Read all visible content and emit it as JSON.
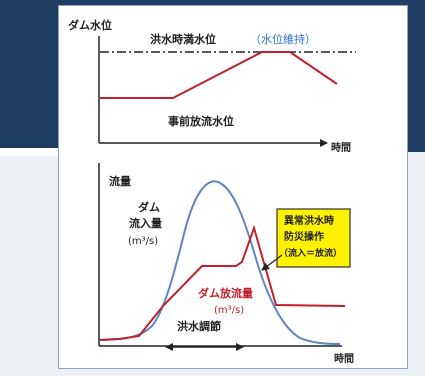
{
  "top_panel": {
    "ylabel": "ダム水位",
    "flood_level_label": "洪水時満水位",
    "maintain_label": "（水位維持）",
    "pre_release_label": "事前放流水位",
    "xlabel": "時間"
  },
  "bottom_panel": {
    "ylabel": "流量",
    "inflow_label_1": "ダム",
    "inflow_label_2": "流入量",
    "inflow_unit": "(m³/s)",
    "outflow_label": "ダム放流量",
    "outflow_unit": "(m³/s)",
    "control_label": "洪水調節",
    "xlabel": "時間",
    "callout_1": "異常洪水時",
    "callout_2": "防災操作",
    "callout_3": "（流入＝放流）"
  },
  "colors": {
    "background_dark": "#1f3d63",
    "card_border": "#8aa3c7",
    "outflow_line": "#c0212c",
    "inflow_line": "#5b87c5",
    "callout_fill": "#fff200",
    "maintain_text": "#2e6fd0"
  }
}
